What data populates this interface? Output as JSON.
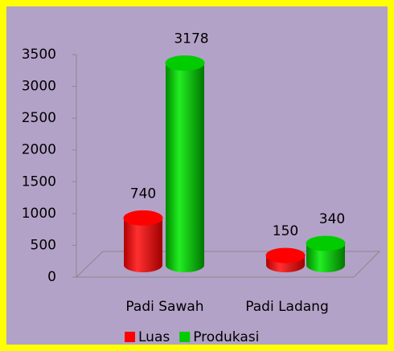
{
  "chart_data": {
    "type": "bar3d",
    "categories": [
      "Padi Sawah",
      "Padi Ladang"
    ],
    "series": [
      {
        "name": "Luas",
        "color": "#ff0000",
        "values": [
          740,
          150
        ]
      },
      {
        "name": "Produkasi",
        "color": "#00cc00",
        "values": [
          3178,
          340
        ]
      }
    ],
    "ylim": [
      0,
      3500
    ],
    "yticks": [
      0,
      500,
      1000,
      1500,
      2000,
      2500,
      3000,
      3500
    ],
    "legend": "bottom",
    "data_labels": true
  }
}
